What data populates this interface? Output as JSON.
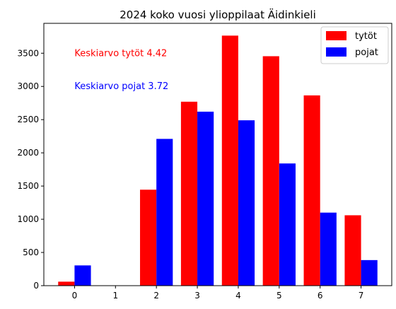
{
  "chart_data": {
    "type": "bar",
    "title": "2024 koko vuosi ylioppilaat Äidinkieli",
    "xlabel": "",
    "ylabel": "",
    "categories": [
      0,
      1,
      2,
      3,
      4,
      5,
      6,
      7
    ],
    "x_ticks": [
      "0",
      "1",
      "2",
      "3",
      "4",
      "5",
      "6",
      "7"
    ],
    "y_ticks": [
      "0",
      "500",
      "1000",
      "1500",
      "2000",
      "2500",
      "3000",
      "3500"
    ],
    "ylim": [
      0,
      3950
    ],
    "xlim": [
      -0.75,
      7.75
    ],
    "grid": false,
    "legend_position": "top-right",
    "series": [
      {
        "name": "tytöt",
        "color": "#ff0000",
        "values": [
          60,
          0,
          1445,
          2770,
          3765,
          3455,
          2865,
          1060
        ]
      },
      {
        "name": "pojat",
        "color": "#0000ff",
        "values": [
          305,
          0,
          2210,
          2620,
          2490,
          1840,
          1100,
          385
        ]
      }
    ],
    "annotations": [
      {
        "text": "Keskiarvo tytöt 4.42",
        "color": "#ff0000",
        "x": 0,
        "y": 3500
      },
      {
        "text": "Keskiarvo pojat 3.72",
        "color": "#0000ff",
        "x": 0,
        "y": 3000
      }
    ]
  }
}
